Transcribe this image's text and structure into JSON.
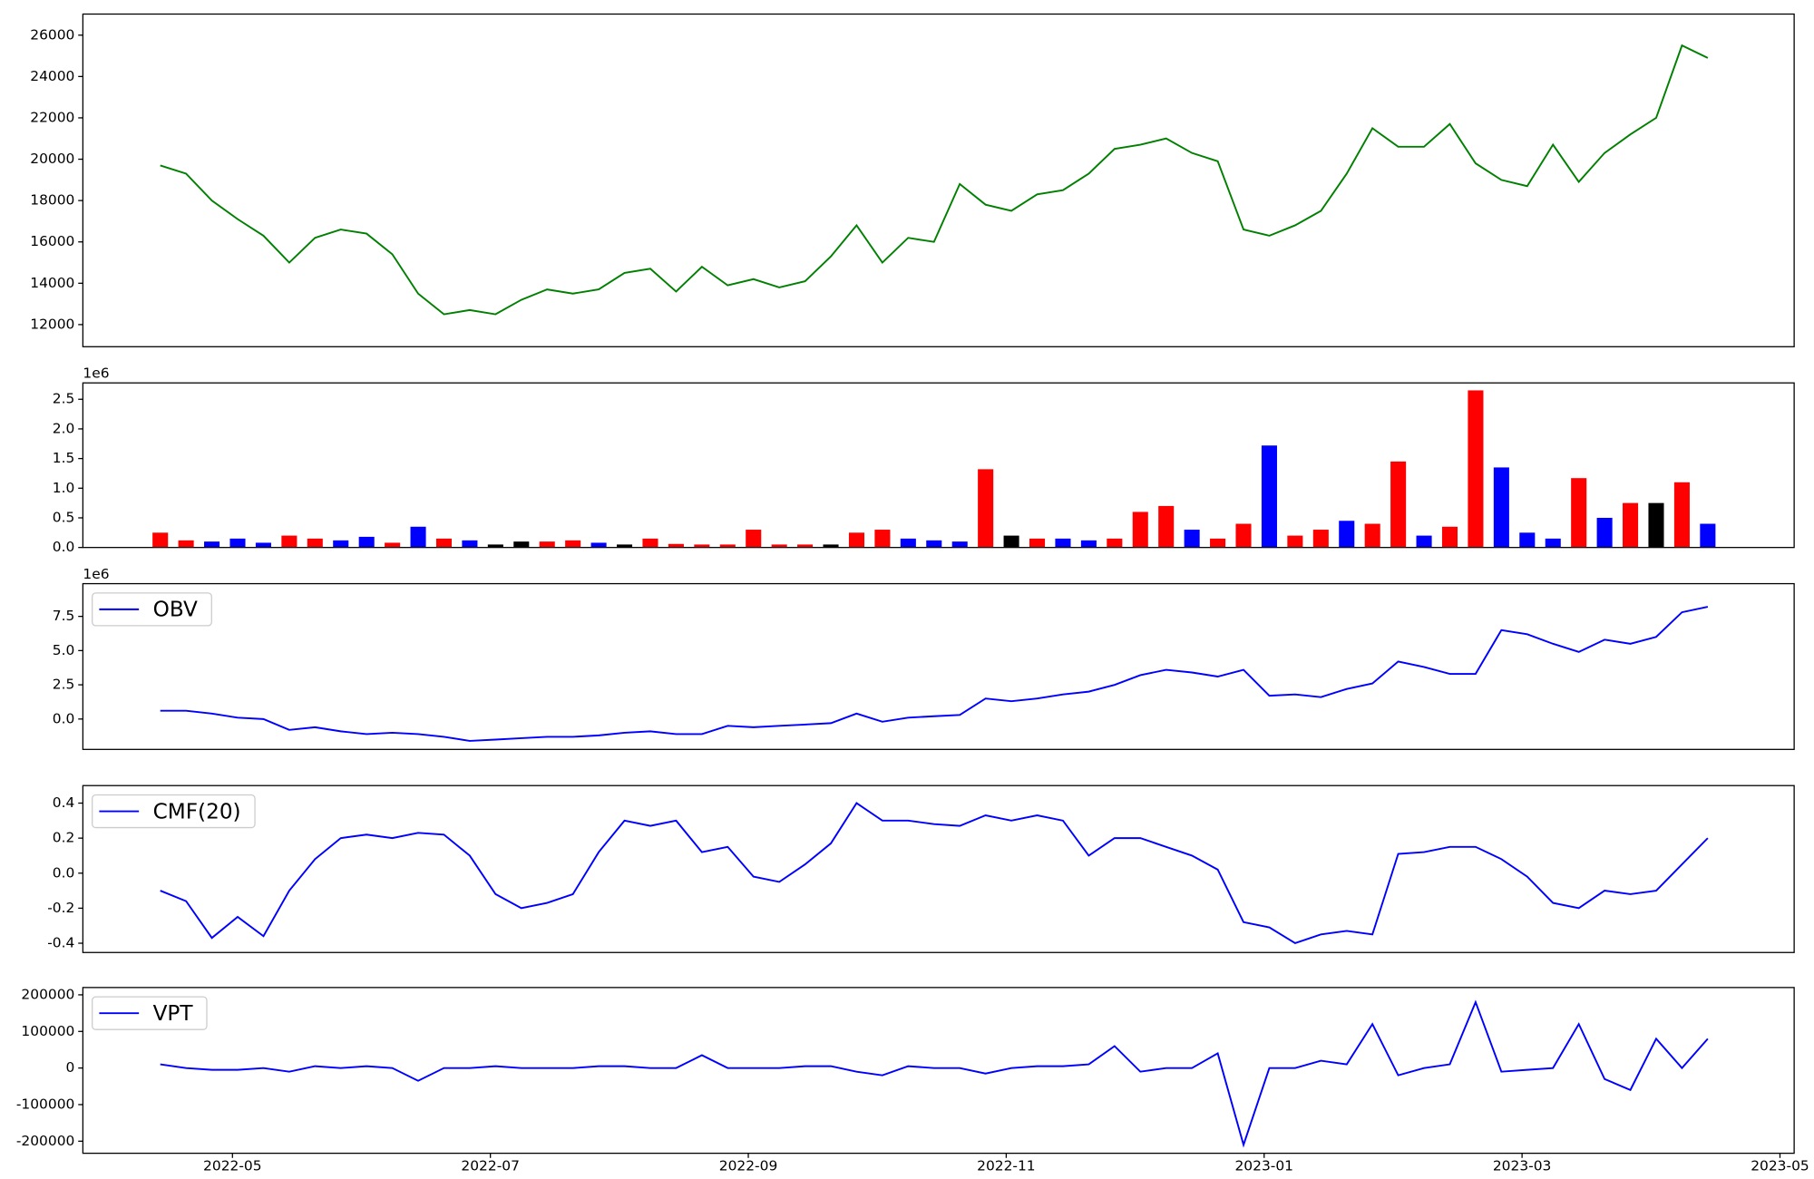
{
  "chart_data": [
    {
      "type": "line",
      "color": "green",
      "x": [
        3.44,
        3.64,
        3.84,
        4.04,
        4.24,
        4.44,
        4.64,
        4.84,
        5.04,
        5.24,
        5.44,
        5.64,
        5.84,
        6.04,
        6.24,
        6.44,
        6.64,
        6.84,
        7.04,
        7.24,
        7.44,
        7.64,
        7.84,
        8.04,
        8.24,
        8.44,
        8.64,
        8.84,
        9.04,
        9.24,
        9.44,
        9.64,
        9.84,
        10.04,
        10.24,
        10.44,
        10.64,
        10.84,
        11.04,
        11.24,
        11.44,
        11.64,
        11.84,
        12.04,
        12.24,
        12.44,
        12.64,
        12.84,
        13.04,
        13.24,
        13.44,
        13.64,
        13.84,
        14.04,
        14.24,
        14.44,
        14.64,
        14.84,
        15.04,
        15.24,
        15.44
      ],
      "values": [
        19700,
        19300,
        18000,
        17100,
        16300,
        15000,
        16200,
        16600,
        16400,
        15400,
        13500,
        12500,
        12700,
        12500,
        13200,
        13700,
        13500,
        13700,
        14500,
        14700,
        13600,
        14800,
        13900,
        14200,
        13800,
        14100,
        15300,
        16800,
        15000,
        16200,
        16000,
        18800,
        17800,
        17500,
        18300,
        18500,
        19300,
        20500,
        20700,
        21000,
        20300,
        19900,
        16600,
        16300,
        16800,
        17500,
        19300,
        21500,
        20600,
        20600,
        21700,
        19800,
        19000,
        18700,
        20700,
        18900,
        20300,
        21200,
        22000,
        25500,
        24900
      ],
      "xlim": [
        2.84,
        16.11
      ],
      "ylim": [
        10930,
        27020
      ],
      "yticks": [
        12000,
        14000,
        16000,
        18000,
        20000,
        22000,
        24000,
        26000
      ]
    },
    {
      "type": "bar",
      "offset_label": "1e6",
      "x": [
        3.44,
        3.64,
        3.84,
        4.04,
        4.24,
        4.44,
        4.64,
        4.84,
        5.04,
        5.24,
        5.44,
        5.64,
        5.84,
        6.04,
        6.24,
        6.44,
        6.64,
        6.84,
        7.04,
        7.24,
        7.44,
        7.64,
        7.84,
        8.04,
        8.24,
        8.44,
        8.64,
        8.84,
        9.04,
        9.24,
        9.44,
        9.64,
        9.84,
        10.04,
        10.24,
        10.44,
        10.64,
        10.84,
        11.04,
        11.24,
        11.44,
        11.64,
        11.84,
        12.04,
        12.24,
        12.44,
        12.64,
        12.84,
        13.04,
        13.24,
        13.44,
        13.64,
        13.84,
        14.04,
        14.24,
        14.44,
        14.64,
        14.84,
        15.04,
        15.24,
        15.44
      ],
      "values": [
        250000,
        120000,
        100000,
        150000,
        80000,
        200000,
        150000,
        120000,
        180000,
        80000,
        350000,
        150000,
        120000,
        50000,
        100000,
        100000,
        120000,
        80000,
        50000,
        150000,
        60000,
        50000,
        50000,
        300000,
        50000,
        50000,
        50000,
        250000,
        300000,
        150000,
        120000,
        100000,
        1320000,
        200000,
        150000,
        150000,
        120000,
        150000,
        600000,
        700000,
        300000,
        150000,
        400000,
        1720000,
        200000,
        300000,
        450000,
        400000,
        1450000,
        200000,
        350000,
        2650000,
        1350000,
        250000,
        150000,
        1170000,
        500000,
        750000,
        750000,
        1100000,
        400000
      ],
      "colors": [
        "red",
        "red",
        "blue",
        "blue",
        "blue",
        "red",
        "red",
        "blue",
        "blue",
        "red",
        "blue",
        "red",
        "blue",
        "black",
        "black",
        "red",
        "red",
        "blue",
        "black",
        "red",
        "red",
        "red",
        "red",
        "red",
        "red",
        "red",
        "black",
        "red",
        "red",
        "blue",
        "blue",
        "blue",
        "red",
        "black",
        "red",
        "blue",
        "blue",
        "red",
        "red",
        "red",
        "blue",
        "red",
        "red",
        "blue",
        "red",
        "red",
        "blue",
        "red",
        "red",
        "blue",
        "red",
        "red",
        "blue",
        "blue",
        "blue",
        "red",
        "blue",
        "red",
        "black",
        "red",
        "blue"
      ],
      "xlim": [
        2.84,
        16.11
      ],
      "ylim": [
        0,
        2776000
      ],
      "yticks": [
        {
          "value": 0,
          "label": "0.0"
        },
        {
          "value": 500000,
          "label": "0.5"
        },
        {
          "value": 1000000,
          "label": "1.0"
        },
        {
          "value": 1500000,
          "label": "1.5"
        },
        {
          "value": 2000000,
          "label": "2.0"
        },
        {
          "value": 2500000,
          "label": "2.5"
        }
      ]
    },
    {
      "type": "line",
      "offset_label": "1e6",
      "x": [
        3.44,
        3.64,
        3.84,
        4.04,
        4.24,
        4.44,
        4.64,
        4.84,
        5.04,
        5.24,
        5.44,
        5.64,
        5.84,
        6.04,
        6.24,
        6.44,
        6.64,
        6.84,
        7.04,
        7.24,
        7.44,
        7.64,
        7.84,
        8.04,
        8.24,
        8.44,
        8.64,
        8.84,
        9.04,
        9.24,
        9.44,
        9.64,
        9.84,
        10.04,
        10.24,
        10.44,
        10.64,
        10.84,
        11.04,
        11.24,
        11.44,
        11.64,
        11.84,
        12.04,
        12.24,
        12.44,
        12.64,
        12.84,
        13.04,
        13.24,
        13.44,
        13.64,
        13.84,
        14.04,
        14.24,
        14.44,
        14.64,
        14.84,
        15.04,
        15.24,
        15.44
      ],
      "series": [
        {
          "name": "OBV",
          "color": "blue",
          "values": [
            600000,
            600000,
            400000,
            100000,
            0,
            -800000,
            -600000,
            -900000,
            -1100000,
            -1000000,
            -1100000,
            -1300000,
            -1600000,
            -1500000,
            -1400000,
            -1300000,
            -1300000,
            -1200000,
            -1000000,
            -900000,
            -1100000,
            -1100000,
            -500000,
            -600000,
            -500000,
            -400000,
            -300000,
            400000,
            -200000,
            100000,
            200000,
            300000,
            1500000,
            1300000,
            1500000,
            1800000,
            2000000,
            2500000,
            3200000,
            3600000,
            3400000,
            3100000,
            3600000,
            1700000,
            1800000,
            1600000,
            2200000,
            2600000,
            4200000,
            3800000,
            3300000,
            3300000,
            6500000,
            6200000,
            5500000,
            4900000,
            5800000,
            5500000,
            6000000,
            7800000,
            8200000
          ]
        }
      ],
      "xlim": [
        2.84,
        16.11
      ],
      "ylim": [
        -2220000,
        9890000
      ],
      "yticks": [
        {
          "value": 0,
          "label": "0.0"
        },
        {
          "value": 2500000,
          "label": "2.5"
        },
        {
          "value": 5000000,
          "label": "5.0"
        },
        {
          "value": 7500000,
          "label": "7.5"
        }
      ]
    },
    {
      "type": "line",
      "x": [
        3.44,
        3.64,
        3.84,
        4.04,
        4.24,
        4.44,
        4.64,
        4.84,
        5.04,
        5.24,
        5.44,
        5.64,
        5.84,
        6.04,
        6.24,
        6.44,
        6.64,
        6.84,
        7.04,
        7.24,
        7.44,
        7.64,
        7.84,
        8.04,
        8.24,
        8.44,
        8.64,
        8.84,
        9.04,
        9.24,
        9.44,
        9.64,
        9.84,
        10.04,
        10.24,
        10.44,
        10.64,
        10.84,
        11.04,
        11.24,
        11.44,
        11.64,
        11.84,
        12.04,
        12.24,
        12.44,
        12.64,
        12.84,
        13.04,
        13.24,
        13.44,
        13.64,
        13.84,
        14.04,
        14.24,
        14.44,
        14.64,
        14.84,
        15.04,
        15.24,
        15.44
      ],
      "series": [
        {
          "name": "CMF(20)",
          "color": "blue",
          "values": [
            -0.1,
            -0.16,
            -0.37,
            -0.25,
            -0.36,
            -0.1,
            0.08,
            0.2,
            0.22,
            0.2,
            0.23,
            0.22,
            0.1,
            -0.12,
            -0.2,
            -0.17,
            -0.12,
            0.12,
            0.3,
            0.27,
            0.3,
            0.12,
            0.15,
            -0.02,
            -0.05,
            0.05,
            0.17,
            0.4,
            0.3,
            0.3,
            0.28,
            0.27,
            0.33,
            0.3,
            0.33,
            0.3,
            0.1,
            0.2,
            0.2,
            0.15,
            0.1,
            0.02,
            -0.28,
            -0.31,
            -0.4,
            -0.35,
            -0.33,
            -0.35,
            0.11,
            0.12,
            0.15,
            0.15,
            0.08,
            -0.02,
            -0.17,
            -0.2,
            -0.1,
            -0.12,
            -0.1,
            0.05,
            0.2
          ]
        }
      ],
      "xlim": [
        2.84,
        16.11
      ],
      "ylim": [
        -0.453,
        0.5
      ],
      "yticks": [
        -0.4,
        -0.2,
        {
          "value": 0,
          "label": "0.0"
        },
        0.2,
        0.4
      ]
    },
    {
      "type": "line",
      "x": [
        3.44,
        3.64,
        3.84,
        4.04,
        4.24,
        4.44,
        4.64,
        4.84,
        5.04,
        5.24,
        5.44,
        5.64,
        5.84,
        6.04,
        6.24,
        6.44,
        6.64,
        6.84,
        7.04,
        7.24,
        7.44,
        7.64,
        7.84,
        8.04,
        8.24,
        8.44,
        8.64,
        8.84,
        9.04,
        9.24,
        9.44,
        9.64,
        9.84,
        10.04,
        10.24,
        10.44,
        10.64,
        10.84,
        11.04,
        11.24,
        11.44,
        11.64,
        11.84,
        12.04,
        12.24,
        12.44,
        12.64,
        12.84,
        13.04,
        13.24,
        13.44,
        13.64,
        13.84,
        14.04,
        14.24,
        14.44,
        14.64,
        14.84,
        15.04,
        15.24,
        15.44
      ],
      "series": [
        {
          "name": "VPT",
          "color": "blue",
          "values": [
            10000,
            0,
            -5000,
            -5000,
            0,
            -10000,
            5000,
            0,
            5000,
            0,
            -35000,
            0,
            0,
            5000,
            0,
            0,
            0,
            5000,
            5000,
            0,
            0,
            35000,
            0,
            0,
            0,
            5000,
            5000,
            -10000,
            -20000,
            5000,
            0,
            0,
            -15000,
            0,
            5000,
            5000,
            10000,
            60000,
            -10000,
            0,
            0,
            40000,
            -210000,
            0,
            0,
            20000,
            10000,
            120000,
            -20000,
            0,
            10000,
            180000,
            -10000,
            -5000,
            0,
            120000,
            -30000,
            -60000,
            80000,
            0,
            80000
          ]
        }
      ],
      "xlim": [
        2.84,
        16.11
      ],
      "ylim": [
        -233000,
        220000
      ],
      "yticks": [
        -200000,
        -100000,
        0,
        100000,
        200000
      ],
      "xticks": [
        {
          "value": 4,
          "label": "2022-05"
        },
        {
          "value": 6,
          "label": "2022-07"
        },
        {
          "value": 8,
          "label": "2022-09"
        },
        {
          "value": 10,
          "label": "2022-11"
        },
        {
          "value": 12,
          "label": "2023-01"
        },
        {
          "value": 14,
          "label": "2023-03"
        },
        {
          "value": 16,
          "label": "2023-05"
        }
      ]
    }
  ]
}
